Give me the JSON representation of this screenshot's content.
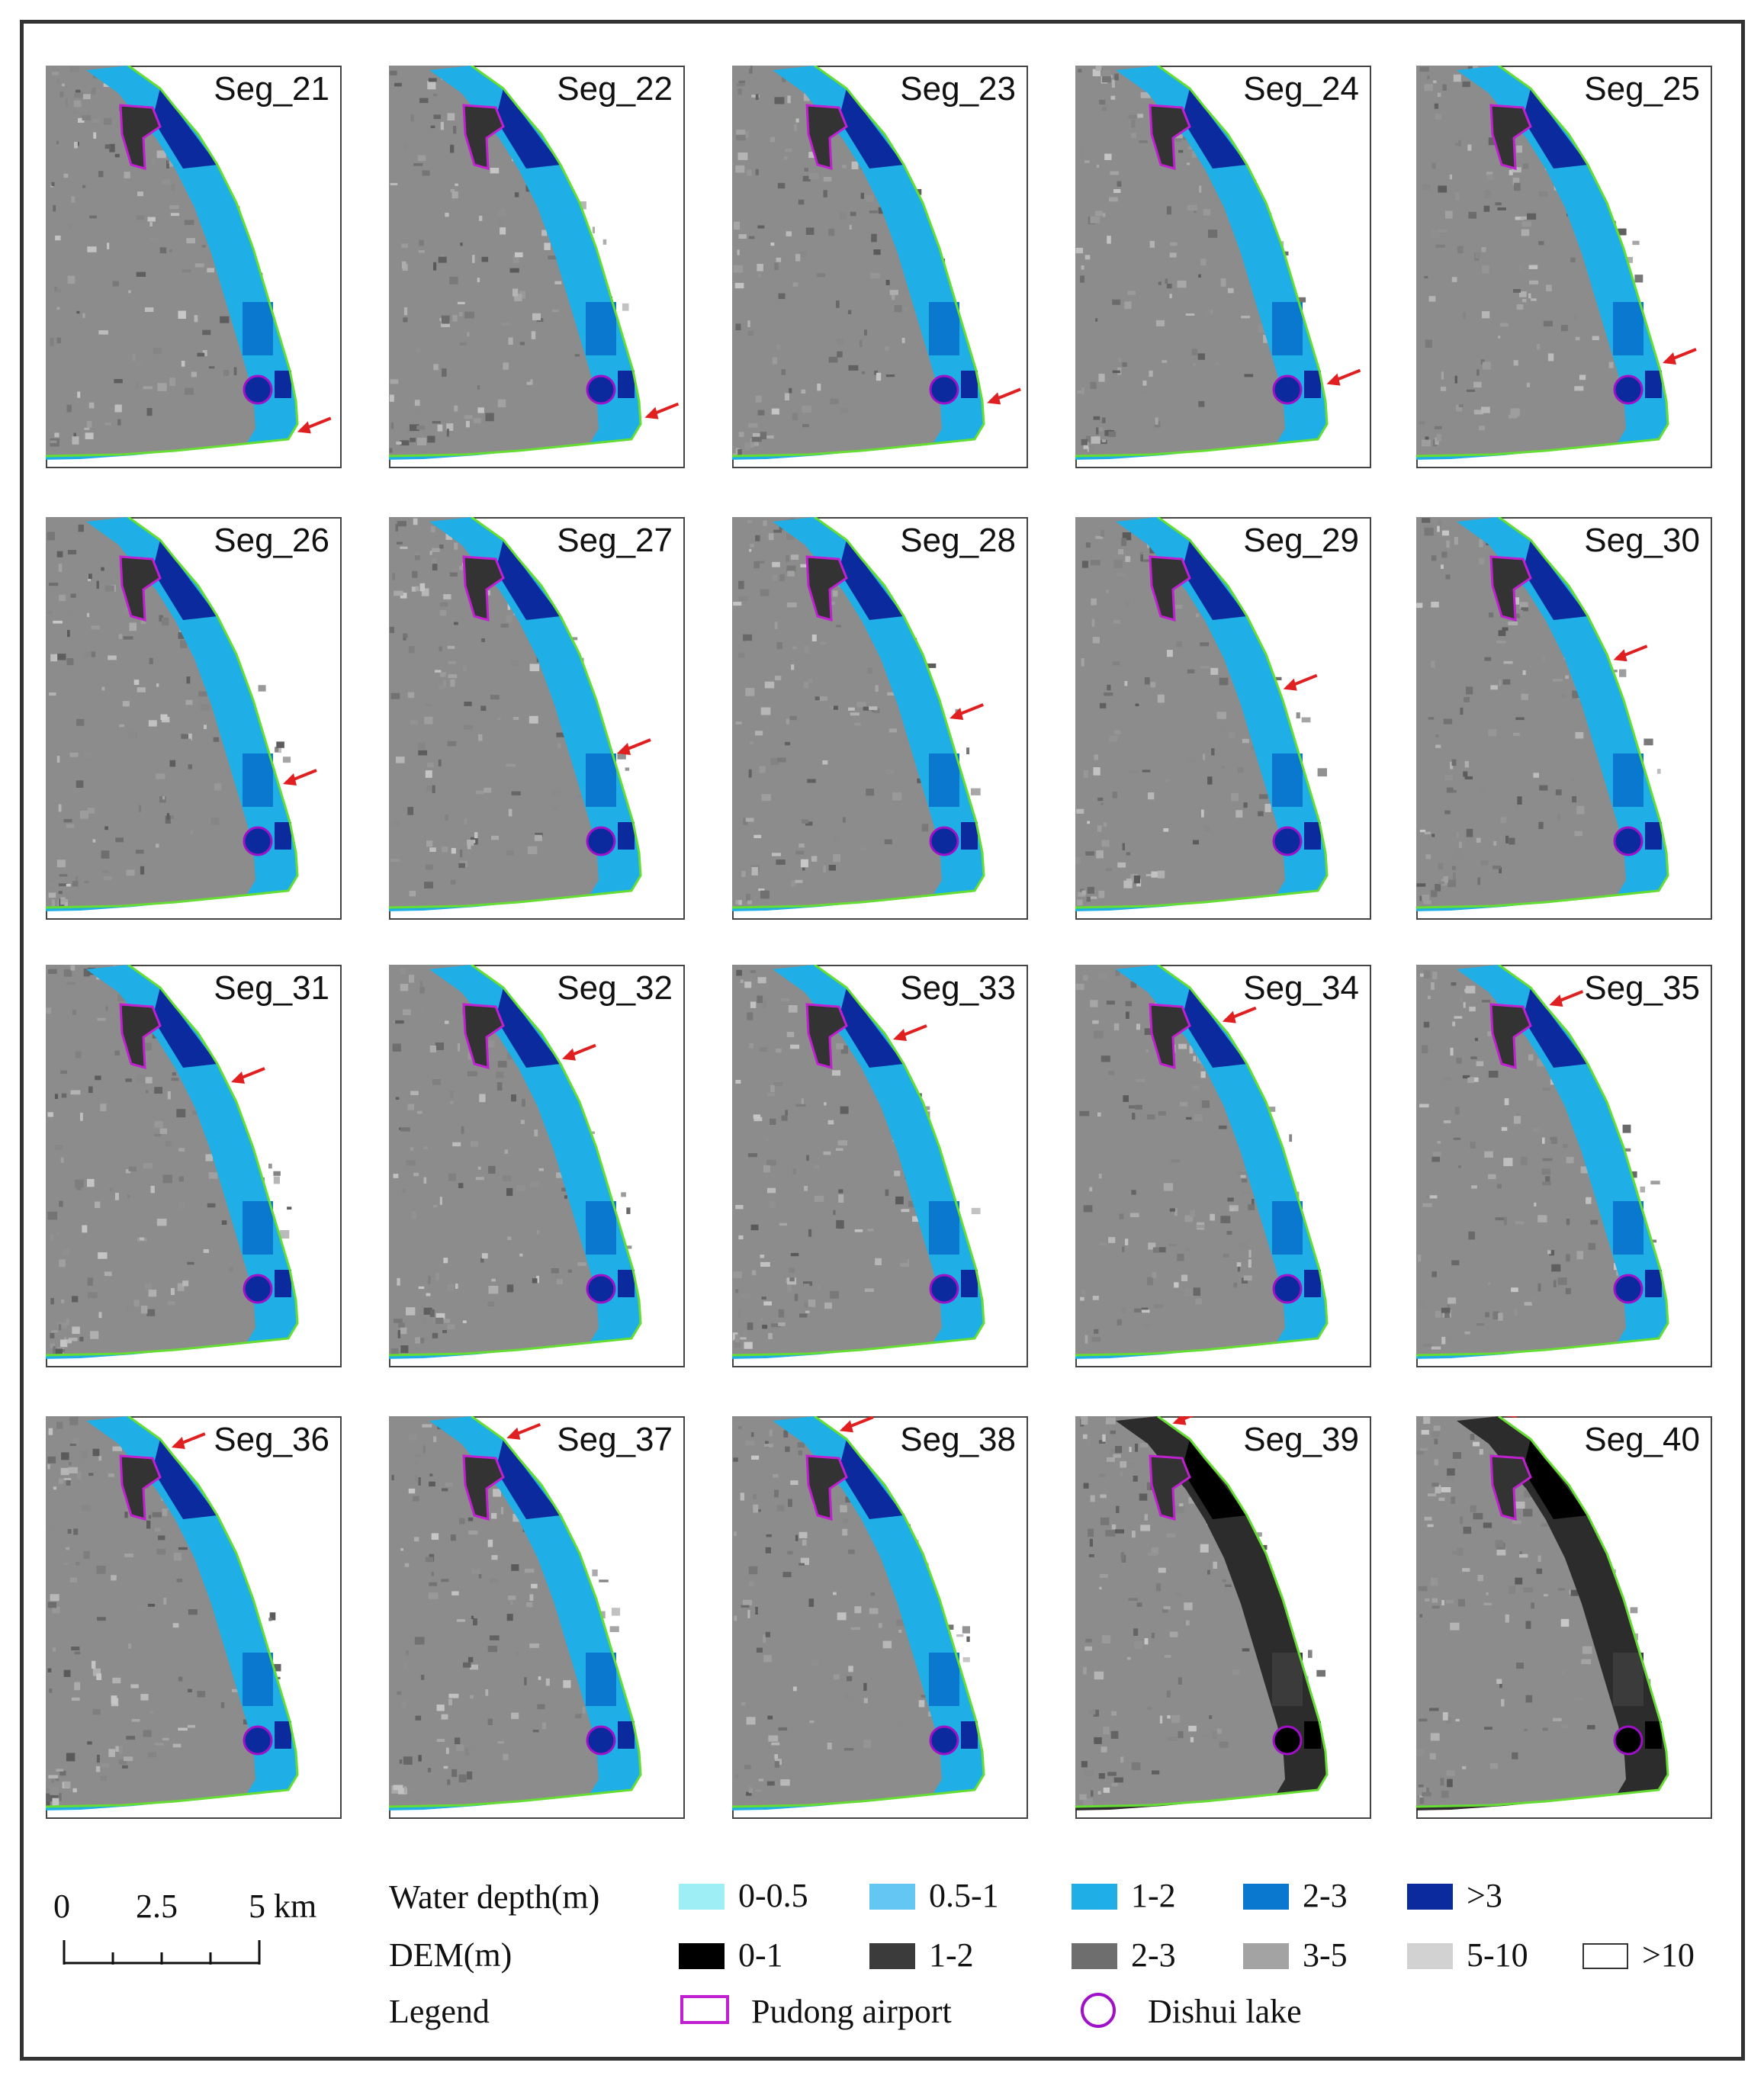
{
  "panels": [
    {
      "label": "Seg_21",
      "mode": "flood",
      "arrow_t": 0.72
    },
    {
      "label": "Seg_22",
      "mode": "flood",
      "arrow_t": 0.67
    },
    {
      "label": "Seg_23",
      "mode": "flood",
      "arrow_t": 0.63
    },
    {
      "label": "Seg_24",
      "mode": "flood",
      "arrow_t": 0.59
    },
    {
      "label": "Seg_25",
      "mode": "flood",
      "arrow_t": 0.55
    },
    {
      "label": "Seg_26",
      "mode": "flood",
      "arrow_t": 0.5
    },
    {
      "label": "Seg_27",
      "mode": "flood",
      "arrow_t": 0.45
    },
    {
      "label": "Seg_28",
      "mode": "flood",
      "arrow_t": 0.4
    },
    {
      "label": "Seg_29",
      "mode": "flood",
      "arrow_t": 0.36
    },
    {
      "label": "Seg_30",
      "mode": "flood",
      "arrow_t": 0.32
    },
    {
      "label": "Seg_31",
      "mode": "flood",
      "arrow_t": 0.28
    },
    {
      "label": "Seg_32",
      "mode": "flood",
      "arrow_t": 0.24
    },
    {
      "label": "Seg_33",
      "mode": "flood",
      "arrow_t": 0.2
    },
    {
      "label": "Seg_34",
      "mode": "flood",
      "arrow_t": 0.16
    },
    {
      "label": "Seg_35",
      "mode": "flood",
      "arrow_t": 0.12
    },
    {
      "label": "Seg_36",
      "mode": "flood",
      "arrow_t": 0.09
    },
    {
      "label": "Seg_37",
      "mode": "flood",
      "arrow_t": 0.06
    },
    {
      "label": "Seg_38",
      "mode": "flood",
      "arrow_t": 0.04
    },
    {
      "label": "Seg_39",
      "mode": "dem",
      "arrow_t": 0.02
    },
    {
      "label": "Seg_40",
      "mode": "dem",
      "arrow_t": 0.0
    }
  ],
  "legend": {
    "water_title": "Water depth(m)",
    "water_classes": [
      {
        "label": "0-0.5",
        "color": "#9eeff5"
      },
      {
        "label": "0.5-1",
        "color": "#64c6f2"
      },
      {
        "label": "1-2",
        "color": "#1faee6"
      },
      {
        "label": "2-3",
        "color": "#0a78cf"
      },
      {
        "label": ">3",
        "color": "#0a2a9e"
      }
    ],
    "dem_title": "DEM(m)",
    "dem_classes": [
      {
        "label": "0-1",
        "color": "#000000"
      },
      {
        "label": "1-2",
        "color": "#3b3b3b"
      },
      {
        "label": "2-3",
        "color": "#6e6e6e"
      },
      {
        "label": "3-5",
        "color": "#a3a3a3"
      },
      {
        "label": "5-10",
        "color": "#d2d2d2"
      },
      {
        "label": ">10",
        "color": "#ffffff"
      }
    ],
    "legend_title": "Legend",
    "airport_label": "Pudong airport",
    "airport_color": "#c020d0",
    "lake_label": "Dishui lake",
    "lake_color": "#a010c8"
  },
  "scale": {
    "labels": [
      "0",
      "2.5",
      "5 km"
    ]
  },
  "colors": {
    "arrow": "#e02020",
    "coast": "#66dd33"
  }
}
